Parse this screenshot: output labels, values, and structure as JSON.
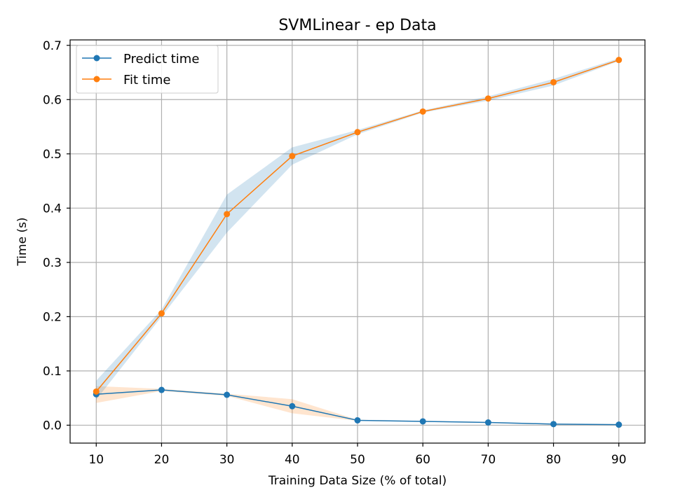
{
  "chart_data": {
    "type": "line",
    "title": "SVMLinear - ep Data",
    "xlabel": "Training Data Size (% of total)",
    "ylabel": "Time (s)",
    "x": [
      10,
      20,
      30,
      40,
      50,
      60,
      70,
      80,
      90
    ],
    "xlim": [
      6,
      94
    ],
    "ylim": [
      -0.033,
      0.71
    ],
    "xticks": [
      10,
      20,
      30,
      40,
      50,
      60,
      70,
      80,
      90
    ],
    "yticks": [
      0.0,
      0.1,
      0.2,
      0.3,
      0.4,
      0.5,
      0.6,
      0.7
    ],
    "ytick_labels": [
      "0.0",
      "0.1",
      "0.2",
      "0.3",
      "0.4",
      "0.5",
      "0.6",
      "0.7"
    ],
    "grid": true,
    "legend_position": "top-left",
    "series": [
      {
        "name": "Predict time",
        "color": "#1f77b4",
        "values": [
          0.057,
          0.065,
          0.056,
          0.035,
          0.009,
          0.007,
          0.005,
          0.002,
          0.001
        ],
        "band_lower": [
          0.041,
          0.063,
          0.054,
          0.022,
          0.008,
          0.006,
          0.004,
          0.001,
          0.0
        ],
        "band_upper": [
          0.072,
          0.067,
          0.058,
          0.048,
          0.01,
          0.008,
          0.006,
          0.003,
          0.002
        ],
        "band_color": "#ff7f0e"
      },
      {
        "name": "Fit time",
        "color": "#ff7f0e",
        "values": [
          0.062,
          0.206,
          0.389,
          0.496,
          0.54,
          0.578,
          0.602,
          0.632,
          0.673
        ],
        "band_lower": [
          0.047,
          0.2,
          0.355,
          0.48,
          0.536,
          0.576,
          0.598,
          0.626,
          0.671
        ],
        "band_upper": [
          0.082,
          0.213,
          0.425,
          0.512,
          0.544,
          0.58,
          0.606,
          0.638,
          0.676
        ],
        "band_color": "#1f77b4"
      }
    ]
  }
}
